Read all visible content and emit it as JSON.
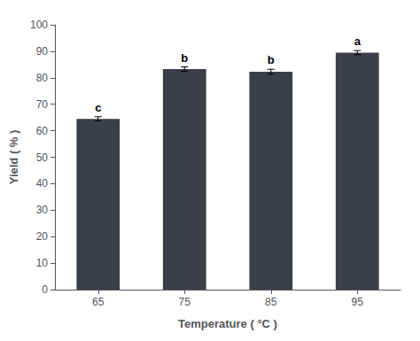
{
  "chart_data": {
    "type": "bar",
    "categories": [
      "65",
      "75",
      "85",
      "95"
    ],
    "values": [
      64.5,
      83.3,
      82.3,
      89.5
    ],
    "errors": [
      0.8,
      0.8,
      0.9,
      0.8
    ],
    "annotations": [
      "c",
      "b",
      "b",
      "a"
    ],
    "color": "#3b3f47",
    "xlabel": "Temperature ( °C )",
    "ylabel": "Yield ( % )",
    "ylim": [
      0,
      100
    ],
    "yticks": [
      0,
      10,
      20,
      30,
      40,
      50,
      60,
      70,
      80,
      90,
      100
    ],
    "grid": false
  }
}
